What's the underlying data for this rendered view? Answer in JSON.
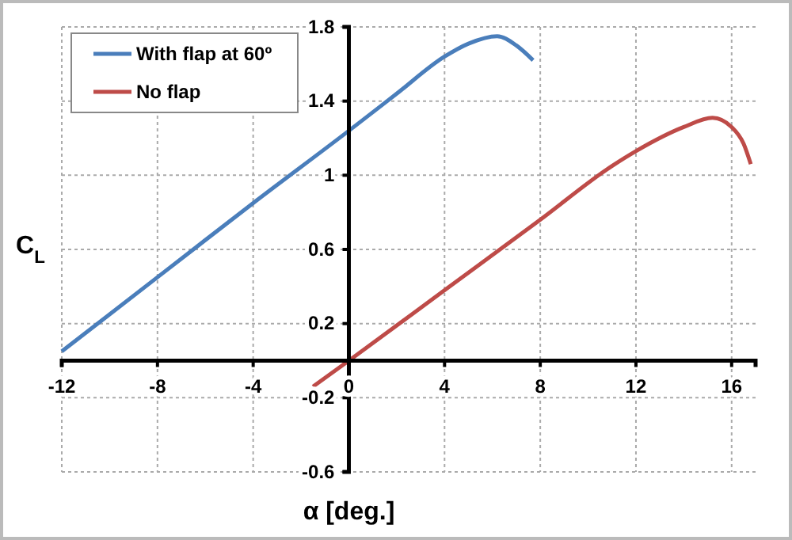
{
  "chart_data": {
    "type": "line",
    "xlabel": "α [deg.]",
    "ylabel": "C$_{L}$",
    "x": [
      -12,
      -8,
      -4,
      0,
      2,
      4,
      5,
      6.2,
      7,
      7.7
    ],
    "xlim": [
      -12,
      17
    ],
    "ylim": [
      -0.6,
      1.8
    ],
    "xticks": [
      -12,
      -8,
      -4,
      0,
      4,
      8,
      12,
      16
    ],
    "yticks": [
      -0.6,
      -0.2,
      0.2,
      0.6,
      1,
      1.4,
      1.8
    ],
    "grid": true,
    "legend": "top left",
    "line_style": "solid",
    "marker": "none",
    "series": [
      {
        "name": "With flap at 60º",
        "color": "#4a7ebb",
        "values": [
          0.05,
          0.45,
          0.85,
          1.24,
          1.44,
          1.64,
          1.71,
          1.75,
          1.7,
          1.62
        ]
      },
      {
        "name": "No flap",
        "color": "#be4b48",
        "x": [
          -1.5,
          0,
          4,
          8,
          11,
          12,
          14,
          15.2,
          16,
          16.5,
          16.8
        ],
        "values": [
          -0.14,
          0,
          0.38,
          0.76,
          1.05,
          1.13,
          1.26,
          1.31,
          1.26,
          1.17,
          1.06
        ]
      }
    ]
  }
}
